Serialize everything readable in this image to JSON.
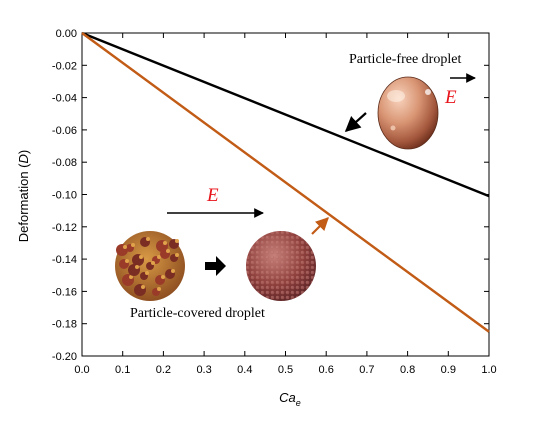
{
  "chart_data": {
    "type": "line",
    "xlabel": "Ca",
    "xlabel_sub": "e",
    "ylabel": "Deformation (",
    "ylabel_var": "D",
    "ylabel_close": ")",
    "xlim": [
      0.0,
      1.0
    ],
    "ylim": [
      -0.2,
      0.0
    ],
    "x_ticks": [
      0.0,
      0.1,
      0.2,
      0.3,
      0.4,
      0.5,
      0.6,
      0.7,
      0.8,
      0.9,
      1.0
    ],
    "y_ticks": [
      0.0,
      -0.02,
      -0.04,
      -0.06,
      -0.08,
      -0.1,
      -0.12,
      -0.14,
      -0.16,
      -0.18,
      -0.2
    ],
    "x_tick_labels": [
      "0.0",
      "0.1",
      "0.2",
      "0.3",
      "0.4",
      "0.5",
      "0.6",
      "0.7",
      "0.8",
      "0.9",
      "1.0"
    ],
    "y_tick_labels": [
      "0.00",
      "-0.02",
      "-0.04",
      "-0.06",
      "-0.08",
      "-0.10",
      "-0.12",
      "-0.14",
      "-0.16",
      "-0.18",
      "-0.20"
    ],
    "grid": false,
    "series": [
      {
        "color": "#000000",
        "x": [
          0.0,
          1.0
        ],
        "y": [
          0.0,
          -0.101
        ]
      },
      {
        "color": "#c15b15",
        "x": [
          0.0,
          1.0
        ],
        "y": [
          0.0,
          -0.185
        ]
      }
    ],
    "annotations": {
      "particle_free_label": "Particle-free droplet",
      "particle_covered_label": "Particle-covered droplet",
      "field_symbol": "E"
    }
  },
  "colors": {
    "particle_free_line": "#000000",
    "particle_covered_line": "#c15b15",
    "field_label": "#e8141b"
  }
}
